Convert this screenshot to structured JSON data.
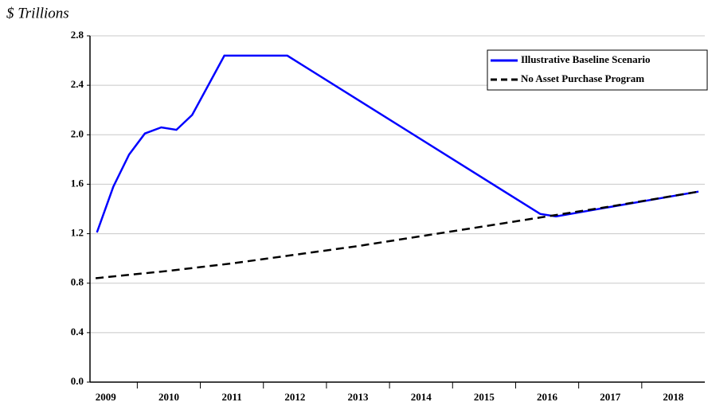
{
  "chart_data": {
    "type": "line",
    "y_label": "$ Trillions",
    "xlim": [
      2009.25,
      2019
    ],
    "xticks": [
      {
        "value": 2009.5,
        "label": "2009"
      },
      {
        "value": 2010.5,
        "label": "2010"
      },
      {
        "value": 2011.5,
        "label": "2011"
      },
      {
        "value": 2012.5,
        "label": "2012"
      },
      {
        "value": 2013.5,
        "label": "2013"
      },
      {
        "value": 2014.5,
        "label": "2014"
      },
      {
        "value": 2015.5,
        "label": "2015"
      },
      {
        "value": 2016.5,
        "label": "2016"
      },
      {
        "value": 2017.5,
        "label": "2017"
      },
      {
        "value": 2018.5,
        "label": "2018"
      }
    ],
    "xtick_marks": [
      2010,
      2011,
      2012,
      2013,
      2014,
      2015,
      2016,
      2017,
      2018
    ],
    "ylim": [
      0,
      2.8
    ],
    "yticks": [
      {
        "value": 0,
        "label": "0.0"
      },
      0.4,
      0.8,
      1.2,
      1.6,
      {
        "value": 2,
        "label": "2.0"
      },
      2.4,
      2.8
    ],
    "grid": true,
    "legend": "upper right",
    "series": [
      {
        "name": "Illustrative Baseline Scenario",
        "color": "#0000ff",
        "dash": false,
        "x": [
          2009.36,
          2009.62,
          2009.87,
          2010.12,
          2010.38,
          2010.62,
          2010.87,
          2011.38,
          2012.38,
          2016.39,
          2016.64,
          2018.9
        ],
        "values": [
          1.21,
          1.58,
          1.84,
          2.01,
          2.06,
          2.04,
          2.16,
          2.64,
          2.64,
          1.36,
          1.34,
          1.54
        ]
      },
      {
        "name": "No Asset Purchase Program",
        "color": "#000000",
        "dash": true,
        "x": [
          2009.34,
          2010.5,
          2011.5,
          2012.5,
          2013.5,
          2014.5,
          2015.5,
          2016.5,
          2017.5,
          2018.9
        ],
        "values": [
          0.84,
          0.9,
          0.96,
          1.03,
          1.1,
          1.18,
          1.26,
          1.34,
          1.42,
          1.54
        ]
      }
    ]
  }
}
